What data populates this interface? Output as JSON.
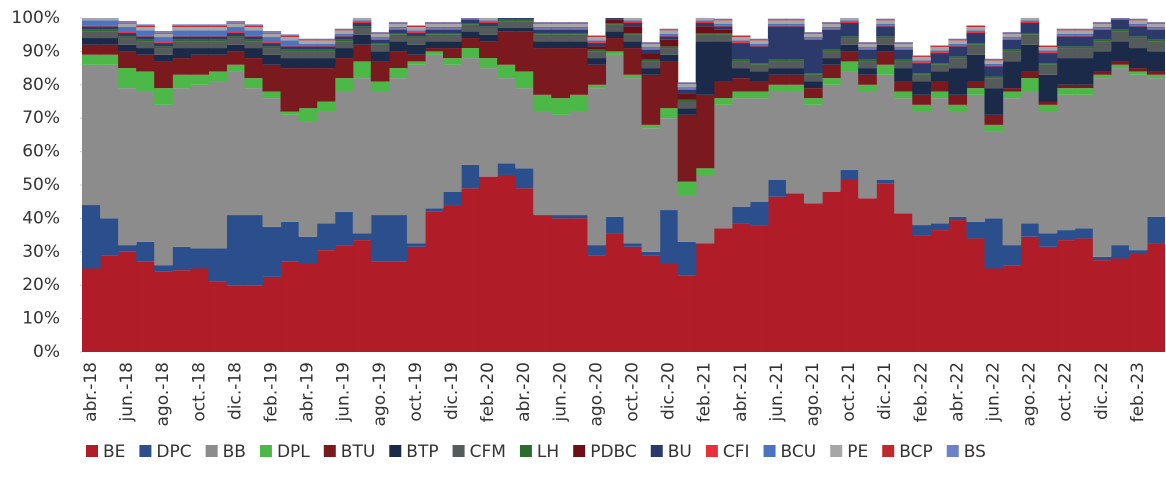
{
  "chart_data": {
    "type": "stacked-step",
    "categories": [
      "abr.-18",
      null,
      "jun.-18",
      null,
      "ago.-18",
      null,
      "oct.-18",
      null,
      "dic.-18",
      null,
      "feb.-19",
      null,
      "abr.-19",
      null,
      "jun.-19",
      null,
      "ago.-19",
      null,
      "oct.-19",
      null,
      "dic.-19",
      null,
      "feb.-20",
      null,
      "abr.-20",
      null,
      "jun.-20",
      null,
      "ago.-20",
      null,
      "oct.-20",
      null,
      "dic.-20",
      null,
      "feb.-21",
      null,
      "abr.-21",
      null,
      "jun.-21",
      null,
      "ago.-21",
      null,
      "oct.-21",
      null,
      "dic.-21",
      null,
      "feb.-22",
      null,
      "abr.-22",
      null,
      "jun.-22",
      null,
      "ago.-22",
      null,
      "oct.-22",
      null,
      "dic.-22",
      null,
      "feb.-23",
      null
    ],
    "ylim": [
      0,
      100
    ],
    "yticks": [
      {
        "value": 0,
        "label": "0%"
      },
      {
        "value": 10,
        "label": "10%"
      },
      {
        "value": 20,
        "label": "20%"
      },
      {
        "value": 30,
        "label": "30%"
      },
      {
        "value": 40,
        "label": "40%"
      },
      {
        "value": 50,
        "label": "50%"
      },
      {
        "value": 60,
        "label": "60%"
      },
      {
        "value": 70,
        "label": "70%"
      },
      {
        "value": 80,
        "label": "80%"
      },
      {
        "value": 90,
        "label": "90%"
      },
      {
        "value": 100,
        "label": "100%"
      }
    ],
    "series": [
      {
        "name": "BE",
        "color": "#b01c27",
        "values": [
          25,
          29,
          30,
          27,
          24,
          24.5,
          25,
          21,
          20,
          20,
          22.5,
          27,
          26.5,
          30.5,
          32,
          33.5,
          27,
          27,
          31.5,
          42,
          44,
          49,
          52.5,
          53,
          49,
          41,
          40,
          40,
          29,
          35.5,
          31.5,
          29,
          26.5,
          23,
          32.5,
          37,
          38.5,
          38,
          46.5,
          47.5,
          44.5,
          48,
          51.5,
          46,
          50.5,
          41.5,
          35,
          36.5,
          39.5,
          34,
          25,
          26,
          34.5,
          31.5,
          33.5,
          34,
          27.5,
          28,
          29.5,
          32.5
        ]
      },
      {
        "name": "DPC",
        "color": "#2a4f8c",
        "values": [
          19,
          11,
          2,
          6,
          2,
          7,
          6,
          10,
          21,
          21,
          15,
          12,
          8,
          8,
          10,
          2,
          14,
          14,
          1,
          1,
          4,
          7,
          0,
          3.5,
          6,
          0,
          1,
          1,
          3,
          5,
          1,
          1,
          16,
          10,
          0,
          0,
          5,
          7,
          5,
          0,
          0,
          0,
          3,
          0,
          1,
          0,
          3,
          2,
          1,
          5,
          15,
          6,
          4,
          4,
          3,
          3,
          1,
          4,
          1,
          8
        ]
      },
      {
        "name": "BB",
        "color": "#8c8c8c",
        "values": [
          42,
          46,
          47,
          45,
          48,
          47.5,
          49,
          50,
          43,
          38,
          38.5,
          32,
          34.5,
          33.5,
          36,
          46.5,
          37,
          41,
          53.5,
          46,
          38,
          32,
          32.5,
          25.5,
          24,
          31,
          30,
          31,
          47,
          48.5,
          49.5,
          37,
          27.5,
          14,
          20.5,
          37,
          32.5,
          31,
          26.5,
          30.5,
          29.5,
          32,
          29.5,
          32,
          31.5,
          34.5,
          34,
          37.5,
          31.5,
          38,
          26,
          44,
          39.5,
          36.5,
          40.5,
          40,
          53.5,
          53,
          52.5,
          41.5
        ]
      },
      {
        "name": "DPL",
        "color": "#4cb848",
        "values": [
          3,
          3,
          6,
          6,
          5,
          4,
          3,
          3,
          2,
          3,
          2,
          1,
          4,
          3,
          4,
          5,
          3,
          3,
          1,
          1,
          2,
          3,
          3,
          4,
          5,
          5,
          5,
          5,
          1,
          1,
          1,
          1,
          3,
          4,
          2,
          2,
          2,
          2,
          2,
          2,
          2,
          2,
          3,
          2,
          3,
          2,
          2,
          2,
          2,
          2,
          2,
          2,
          4,
          2,
          2,
          2,
          1,
          1,
          1,
          1
        ]
      },
      {
        "name": "BTU",
        "color": "#7a1a1e",
        "values": [
          3,
          3,
          5,
          5,
          8,
          5,
          6,
          5,
          4,
          6,
          8,
          13,
          12,
          10,
          6,
          5,
          6,
          5,
          2,
          1,
          3,
          3,
          5,
          10,
          12,
          14,
          15,
          14,
          6,
          4,
          8,
          15,
          14,
          20,
          22,
          5,
          4,
          3,
          3,
          3,
          3,
          4,
          3,
          3,
          4,
          3,
          3,
          3,
          3,
          2,
          3,
          1,
          2,
          1,
          1,
          1,
          1,
          1,
          1,
          1
        ]
      },
      {
        "name": "BTP",
        "color": "#1c2a4a",
        "values": [
          2,
          2,
          2,
          2,
          2,
          3,
          2,
          2,
          2,
          3,
          3,
          3,
          3,
          3,
          3,
          3,
          3,
          3,
          3,
          2,
          2,
          2,
          2,
          1,
          1,
          2,
          2,
          2,
          2,
          2,
          2,
          2,
          2,
          2,
          16,
          12,
          3,
          3,
          2,
          2,
          2,
          2,
          2,
          2,
          2,
          4,
          4,
          3,
          8,
          8,
          8,
          8,
          8,
          8,
          8,
          8,
          6,
          6,
          6,
          6
        ]
      },
      {
        "name": "CFM",
        "color": "#555a5a",
        "values": [
          2,
          2,
          2,
          2,
          2,
          2,
          2,
          2,
          2,
          2,
          2,
          2,
          2,
          2,
          2,
          2,
          2,
          2,
          2,
          2,
          2,
          2,
          2,
          2,
          2,
          2,
          2,
          2,
          2,
          2,
          2,
          2,
          2,
          2,
          2,
          2,
          2,
          2,
          2,
          2,
          2,
          2,
          2,
          2,
          2,
          2,
          2,
          2,
          3,
          3,
          3,
          3,
          3,
          3,
          3,
          3,
          3,
          3,
          3,
          3
        ]
      },
      {
        "name": "LH",
        "color": "#2e6b2e",
        "values": [
          0.5,
          0.5,
          0.5,
          0.5,
          0.5,
          0.5,
          0.5,
          0.5,
          0.5,
          0.5,
          0.5,
          0.5,
          0.5,
          0.5,
          0.5,
          0.5,
          0.5,
          0.5,
          0.5,
          0.5,
          0.5,
          0.5,
          0.5,
          0.5,
          0.5,
          0.5,
          0.5,
          0.5,
          0.5,
          0.5,
          0.5,
          0.5,
          0.5,
          0.5,
          0.5,
          0.5,
          0.5,
          0.5,
          0.5,
          0.5,
          0.5,
          0.5,
          0.5,
          0.5,
          0.5,
          0.5,
          0.5,
          0.5,
          0.5,
          0.5,
          0.5,
          0.5,
          0.5,
          0.5,
          0.5,
          0.5,
          0.5,
          0.5,
          0.5,
          0.5
        ]
      },
      {
        "name": "PDBC",
        "color": "#6a1016",
        "values": [
          0,
          0,
          0,
          0,
          0,
          0,
          0,
          0,
          0,
          0,
          0,
          0,
          0,
          0,
          0,
          0,
          0,
          0,
          0,
          0,
          0,
          0,
          0,
          0,
          0,
          0,
          0,
          0,
          1,
          1,
          2,
          2,
          2,
          2,
          2,
          1,
          0,
          0,
          0,
          0,
          0,
          0,
          0,
          0,
          0,
          0,
          0,
          0,
          0,
          0,
          0,
          0,
          0,
          0,
          0,
          0,
          0,
          0,
          0,
          0
        ]
      },
      {
        "name": "BU",
        "color": "#2b3a6b",
        "values": [
          1,
          1,
          1,
          1,
          1,
          1,
          1,
          1,
          1,
          1,
          1,
          1,
          1,
          1,
          1,
          1,
          1,
          1,
          1,
          1,
          1,
          1,
          1,
          1,
          1,
          1,
          1,
          1,
          1,
          1,
          1,
          1,
          1,
          1,
          1,
          1,
          5,
          5,
          10,
          10,
          10,
          6,
          4,
          3,
          3,
          3,
          3,
          3,
          3,
          3,
          3,
          3,
          3,
          3,
          3,
          3,
          3,
          3,
          3,
          3
        ]
      },
      {
        "name": "CFI",
        "color": "#e8303a",
        "values": [
          0.3,
          0.3,
          0.3,
          0.3,
          0.3,
          0.3,
          0.3,
          0.3,
          0.3,
          0.3,
          0.3,
          0.3,
          0.3,
          0.3,
          0.3,
          0.3,
          0.3,
          0.3,
          0.3,
          0.3,
          0.3,
          0.3,
          0.3,
          0.3,
          0.3,
          0.3,
          0.3,
          0.3,
          0.3,
          0.3,
          0.3,
          0.3,
          0.3,
          0.3,
          0.3,
          0.3,
          0.3,
          0.3,
          0.3,
          0.3,
          0.3,
          0.3,
          0.3,
          0.3,
          0.3,
          0.3,
          0.3,
          0.3,
          0.3,
          0.3,
          0.3,
          0.3,
          0.3,
          0.3,
          0.3,
          0.3,
          0.3,
          0.3,
          0.3,
          0.3
        ]
      },
      {
        "name": "BCU",
        "color": "#4a74c0",
        "values": [
          1.5,
          1.5,
          1.5,
          1.5,
          1.5,
          1.5,
          1.5,
          1.5,
          1.5,
          1.5,
          1.5,
          1.5,
          0.5,
          0.5,
          0.5,
          0.5,
          0.5,
          0.5,
          0.5,
          0.5,
          0.5,
          0.5,
          0.5,
          0.5,
          0.5,
          0.5,
          0.5,
          0.5,
          0.5,
          0.5,
          0.5,
          0.5,
          0.5,
          0.5,
          0.5,
          0.5,
          0.5,
          0.5,
          0.5,
          0.5,
          0.5,
          0.5,
          0.5,
          0.5,
          0.5,
          0.5,
          0.5,
          0.5,
          0.5,
          0.5,
          0.5,
          0.5,
          0.5,
          0.5,
          0.5,
          0.5,
          0.5,
          0.5,
          0.5,
          0.5
        ]
      },
      {
        "name": "PE",
        "color": "#a6a6a6",
        "values": [
          1,
          1,
          1,
          1,
          1,
          1,
          1,
          1,
          1,
          1,
          1,
          1,
          1,
          1,
          1,
          1,
          1,
          1,
          1,
          1,
          1,
          1,
          1,
          1,
          1,
          1,
          1,
          1,
          1,
          1,
          1,
          1,
          1,
          1,
          1,
          1,
          1,
          1,
          1,
          1,
          1,
          1,
          1,
          1,
          1,
          1,
          1,
          1,
          1,
          1,
          1,
          1,
          1,
          1,
          1,
          1,
          1,
          1,
          1,
          1
        ]
      },
      {
        "name": "BCP",
        "color": "#c0282e",
        "values": [
          0.3,
          0.3,
          0.3,
          0.3,
          0.3,
          0.3,
          0.3,
          0.3,
          0.3,
          0.3,
          0.3,
          0.3,
          0.3,
          0.3,
          0.3,
          0.3,
          0.3,
          0.3,
          0.3,
          0.3,
          0.3,
          0.3,
          0.3,
          0.3,
          0.3,
          0.3,
          0.3,
          0.3,
          0.3,
          0.3,
          0.3,
          0.3,
          0.3,
          0.3,
          0.3,
          0.3,
          0.3,
          0.3,
          0.3,
          0.3,
          0.3,
          0.3,
          0.3,
          0.3,
          0.3,
          0.3,
          0.3,
          0.3,
          0.3,
          0.3,
          0.3,
          0.3,
          0.3,
          0.3,
          0.3,
          0.3,
          0.3,
          0.3,
          0.3,
          0.3
        ]
      },
      {
        "name": "BS",
        "color": "#6b82c8",
        "values": [
          0.5,
          0.5,
          0.5,
          0.5,
          0.5,
          0.5,
          0.5,
          0.5,
          0.5,
          0.5,
          0.5,
          0.5,
          0.2,
          0.2,
          0.2,
          0.2,
          0.2,
          0.2,
          0.2,
          0.2,
          0.2,
          0.2,
          0.2,
          0.2,
          0.2,
          0.2,
          0.2,
          0.2,
          0.2,
          0.2,
          0.2,
          0.2,
          0.2,
          0.2,
          0.2,
          0.2,
          0.2,
          0.2,
          0.2,
          0.2,
          0.2,
          0.2,
          0.2,
          0.2,
          0.2,
          0.2,
          0.2,
          0.2,
          0.2,
          0.2,
          0.2,
          0.2,
          0.2,
          0.2,
          0.2,
          0.2,
          0.2,
          0.2,
          0.2,
          0.2
        ]
      }
    ]
  }
}
